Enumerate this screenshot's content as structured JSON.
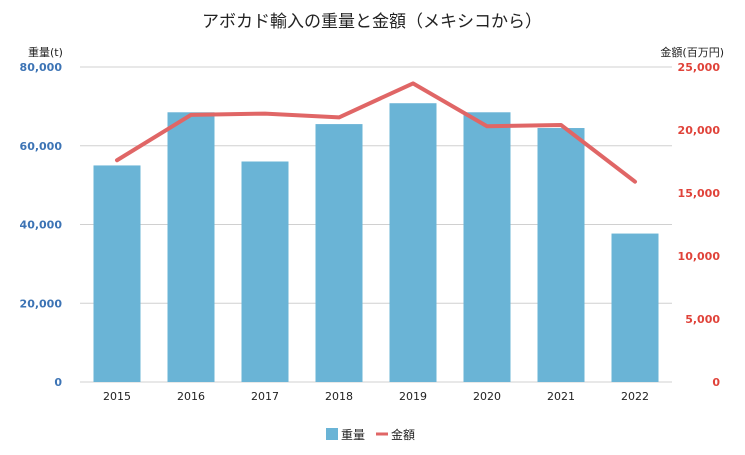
{
  "chart_data": {
    "type": "bar+line",
    "title": "アボカド輸入の重量と金額（メキシコから）",
    "categories": [
      "2015",
      "2016",
      "2017",
      "2018",
      "2019",
      "2020",
      "2021",
      "2022"
    ],
    "series": [
      {
        "name": "重量",
        "type": "bar",
        "axis": "left",
        "color": "#6ab4d6",
        "values": [
          55000,
          68500,
          56000,
          65500,
          70800,
          68500,
          64500,
          37700
        ]
      },
      {
        "name": "金額",
        "type": "line",
        "axis": "right",
        "color": "#e06666",
        "values": [
          17600,
          21200,
          21300,
          21000,
          23700,
          20300,
          20400,
          15900
        ]
      }
    ],
    "left_axis": {
      "label": "重量(t)",
      "ylim": [
        0,
        80000
      ],
      "ticks": [
        0,
        20000,
        40000,
        60000,
        80000
      ],
      "tick_labels": [
        "0",
        "20,000",
        "40,000",
        "60,000",
        "80,000"
      ],
      "color": "#3d74b5"
    },
    "right_axis": {
      "label": "金額(百万円)",
      "ylim": [
        0,
        25000
      ],
      "ticks": [
        0,
        5000,
        10000,
        15000,
        20000,
        25000
      ],
      "tick_labels": [
        "0",
        "5,000",
        "10,000",
        "15,000",
        "20,000",
        "25,000"
      ],
      "color": "#e0433a"
    },
    "grid": true,
    "legend": {
      "position": "bottom",
      "entries": [
        "重量",
        "金額"
      ]
    }
  }
}
